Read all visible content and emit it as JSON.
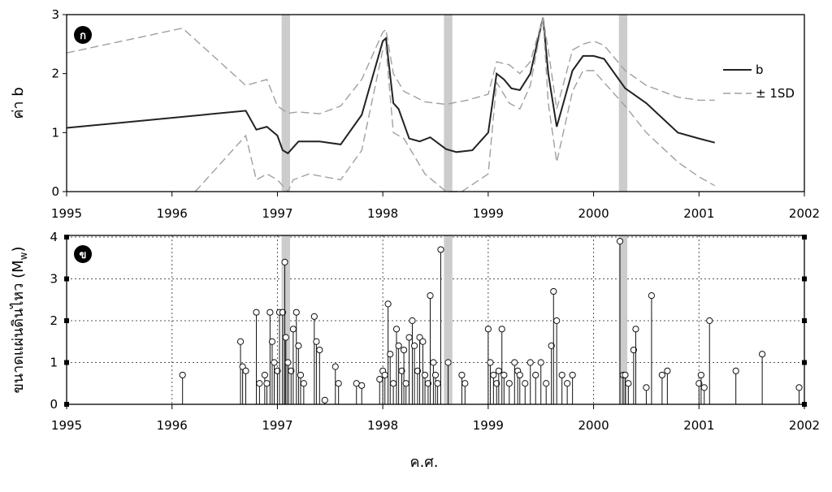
{
  "chart_data": [
    {
      "type": "line",
      "panel_label": "ก",
      "ylabel": "ค่า b",
      "xlabel": "",
      "xlim": [
        1995,
        2002
      ],
      "ylim": [
        0,
        3
      ],
      "x_ticks": [
        "1995",
        "1996",
        "1997",
        "1998",
        "1999",
        "2000",
        "2001",
        "2002"
      ],
      "y_ticks": [
        "0",
        "1",
        "2",
        "3"
      ],
      "grid": false,
      "legend_position": "top-right",
      "highlight_bands": [
        [
          1997.04,
          1997.12
        ],
        [
          1998.58,
          1998.66
        ],
        [
          2000.24,
          2000.32
        ]
      ],
      "series": [
        {
          "name": "b",
          "style": "solid",
          "color": "#222222",
          "x": [
            1995.0,
            1996.7,
            1996.8,
            1996.9,
            1997.0,
            1997.05,
            1997.1,
            1997.2,
            1997.4,
            1997.6,
            1997.8,
            1998.0,
            1998.03,
            1998.1,
            1998.15,
            1998.25,
            1998.35,
            1998.45,
            1998.6,
            1998.7,
            1998.85,
            1999.0,
            1999.08,
            1999.15,
            1999.22,
            1999.3,
            1999.4,
            1999.52,
            1999.57,
            1999.65,
            1999.8,
            1999.9,
            2000.0,
            2000.1,
            2000.3,
            2000.5,
            2000.8,
            2001.0,
            2001.15
          ],
          "y": [
            1.08,
            1.37,
            1.05,
            1.1,
            0.95,
            0.7,
            0.65,
            0.85,
            0.85,
            0.8,
            1.3,
            2.55,
            2.6,
            1.5,
            1.4,
            0.9,
            0.85,
            0.92,
            0.72,
            0.67,
            0.7,
            1.0,
            2.0,
            1.9,
            1.75,
            1.72,
            2.0,
            2.95,
            2.0,
            1.1,
            2.05,
            2.3,
            2.3,
            2.25,
            1.75,
            1.5,
            1.0,
            0.9,
            0.83
          ]
        },
        {
          "name": "± 1SD",
          "style": "dashed",
          "color": "#a0a0a0",
          "x": [
            1995.0,
            1996.1,
            1996.7,
            1996.8,
            1996.9,
            1997.0,
            1997.1,
            1997.2,
            1997.4,
            1997.6,
            1997.8,
            1998.0,
            1998.03,
            1998.1,
            1998.2,
            1998.4,
            1998.6,
            1998.8,
            1999.0,
            1999.08,
            1999.2,
            1999.3,
            1999.4,
            1999.52,
            1999.57,
            1999.65,
            1999.8,
            1999.9,
            2000.0,
            2000.1,
            2000.3,
            2000.5,
            2000.8,
            2001.0,
            2001.15
          ],
          "y": [
            2.35,
            2.77,
            1.8,
            1.85,
            1.9,
            1.45,
            1.33,
            1.35,
            1.32,
            1.45,
            1.9,
            2.7,
            2.75,
            2.0,
            1.7,
            1.52,
            1.48,
            1.55,
            1.65,
            2.2,
            2.15,
            2.0,
            2.2,
            2.95,
            2.4,
            1.4,
            2.4,
            2.5,
            2.55,
            2.48,
            2.05,
            1.8,
            1.6,
            1.55,
            1.55
          ]
        },
        {
          "name": "",
          "style": "dashed",
          "color": "#a0a0a0",
          "x": [
            1996.22,
            1996.7,
            1996.8,
            1996.9,
            1997.0,
            1997.1,
            1997.15,
            1997.3,
            1997.6,
            1997.8,
            1998.0,
            1998.03,
            1998.1,
            1998.2,
            1998.4,
            1998.6,
            1998.75,
            1999.0,
            1999.08,
            1999.2,
            1999.3,
            1999.4,
            1999.52,
            1999.57,
            1999.65,
            1999.8,
            1999.9,
            2000.0,
            2000.1,
            2000.3,
            2000.5,
            2000.8,
            2001.0,
            2001.15
          ],
          "y": [
            0.0,
            0.95,
            0.2,
            0.3,
            0.2,
            0.0,
            0.2,
            0.3,
            0.2,
            0.7,
            2.4,
            2.45,
            1.0,
            0.9,
            0.3,
            0.0,
            0.0,
            0.3,
            1.85,
            1.5,
            1.4,
            1.8,
            2.95,
            1.5,
            0.5,
            1.7,
            2.05,
            2.05,
            1.85,
            1.45,
            1.0,
            0.5,
            0.25,
            0.1
          ]
        }
      ]
    },
    {
      "type": "scatter",
      "panel_label": "ข",
      "ylabel": "ขนาดแผ่นดินไหว (M",
      "ylabel_sub": "w",
      "ylabel_end": ")",
      "xlabel": "ค.ศ.",
      "xlim": [
        1995,
        2002
      ],
      "ylim": [
        0,
        4.2
      ],
      "x_ticks": [
        "1995",
        "1996",
        "1997",
        "1998",
        "1999",
        "2000",
        "2001",
        "2002"
      ],
      "y_ticks": [
        "0",
        "1",
        "2",
        "3",
        "4"
      ],
      "grid": true,
      "marker": "stem-circle",
      "highlight_bands": [
        [
          1997.04,
          1997.12
        ],
        [
          1998.58,
          1998.66
        ],
        [
          2000.24,
          2000.32
        ]
      ],
      "points": {
        "x": [
          1996.1,
          1996.65,
          1996.67,
          1996.7,
          1996.8,
          1996.83,
          1996.88,
          1996.9,
          1996.93,
          1996.95,
          1996.97,
          1997.0,
          1997.02,
          1997.05,
          1997.07,
          1997.08,
          1997.1,
          1997.13,
          1997.15,
          1997.18,
          1997.2,
          1997.22,
          1997.25,
          1997.35,
          1997.37,
          1997.4,
          1997.45,
          1997.55,
          1997.58,
          1997.75,
          1997.8,
          1997.97,
          1998.0,
          1998.02,
          1998.05,
          1998.07,
          1998.1,
          1998.13,
          1998.15,
          1998.18,
          1998.2,
          1998.22,
          1998.25,
          1998.28,
          1998.3,
          1998.33,
          1998.35,
          1998.38,
          1998.4,
          1998.43,
          1998.45,
          1998.48,
          1998.5,
          1998.52,
          1998.55,
          1998.62,
          1998.75,
          1998.78,
          1999.0,
          1999.02,
          1999.05,
          1999.08,
          1999.1,
          1999.13,
          1999.15,
          1999.2,
          1999.25,
          1999.28,
          1999.3,
          1999.35,
          1999.4,
          1999.45,
          1999.5,
          1999.55,
          1999.6,
          1999.62,
          1999.65,
          1999.7,
          1999.75,
          1999.8,
          2000.25,
          2000.28,
          2000.3,
          2000.33,
          2000.38,
          2000.4,
          2000.5,
          2000.55,
          2000.65,
          2000.7,
          2001.0,
          2001.02,
          2001.05,
          2001.1,
          2001.35,
          2001.6,
          2001.95
        ],
        "y": [
          0.7,
          1.5,
          0.9,
          0.8,
          2.2,
          0.5,
          0.7,
          0.5,
          2.2,
          1.5,
          1.0,
          0.8,
          2.2,
          2.2,
          3.4,
          1.6,
          1.0,
          0.8,
          1.8,
          2.2,
          1.4,
          0.7,
          0.5,
          2.1,
          1.5,
          1.3,
          0.1,
          0.9,
          0.5,
          0.5,
          0.45,
          0.6,
          0.8,
          0.7,
          2.4,
          1.2,
          0.5,
          1.8,
          1.4,
          0.8,
          1.3,
          0.5,
          1.6,
          2.0,
          1.4,
          0.8,
          1.6,
          1.5,
          0.7,
          0.5,
          2.6,
          1.0,
          0.7,
          0.5,
          3.7,
          1.0,
          0.7,
          0.5,
          1.8,
          1.0,
          0.7,
          0.5,
          0.8,
          1.8,
          0.7,
          0.5,
          1.0,
          0.8,
          0.7,
          0.5,
          1.0,
          0.7,
          1.0,
          0.5,
          1.4,
          2.7,
          2.0,
          0.7,
          0.5,
          0.7,
          3.9,
          0.7,
          0.7,
          0.5,
          1.3,
          1.8,
          0.4,
          2.6,
          0.7,
          0.8,
          0.5,
          0.7,
          0.4,
          2.0,
          0.8,
          1.2,
          0.4
        ]
      }
    }
  ]
}
